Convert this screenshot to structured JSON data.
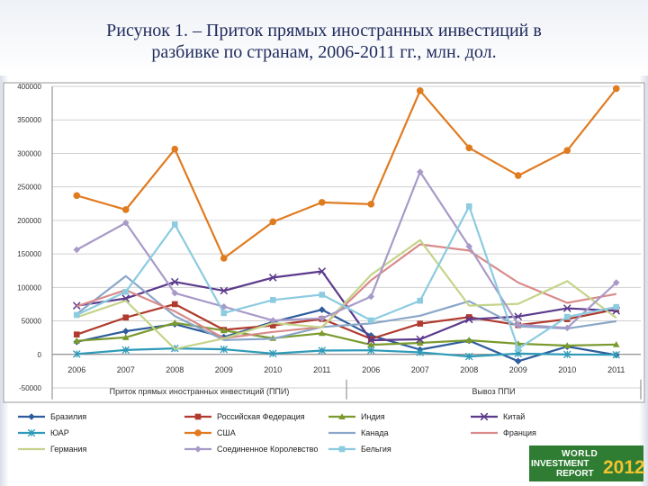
{
  "title": {
    "line1": "Рисунок 1. – Приток прямых иностранных инвестиций в",
    "line2": "разбивке по странам, 2006-2011 гг., млн. дол."
  },
  "logo": {
    "line1": "WORLD",
    "line2": "INVESTMENT",
    "line3": "REPORT",
    "year": "2012"
  },
  "chart_data": {
    "type": "line",
    "title": "",
    "xlabel": "",
    "ylabel": "",
    "y_tick_labels": [
      "-50000",
      "0",
      "50000",
      "100000",
      "150000",
      "200000",
      "250000",
      "300000",
      "350000",
      "400000"
    ],
    "y_ticks": [
      -50000,
      0,
      50000,
      100000,
      150000,
      200000,
      250000,
      300000,
      350000,
      400000
    ],
    "ylim": [
      -50000,
      400000
    ],
    "groups": [
      {
        "label": "Приток прямых иностранных инвестиций (ППИ)",
        "years": [
          "2006",
          "2007",
          "2008",
          "2009",
          "2010",
          "2011"
        ]
      },
      {
        "label": "Вывоз ППИ",
        "years": [
          "2006",
          "2007",
          "2008",
          "2009",
          "2010",
          "2011"
        ]
      }
    ],
    "grid": true,
    "legend_position": "bottom",
    "series": [
      {
        "name": "Бразилия",
        "color": "#2e5c9c",
        "marker": "diamond",
        "values": [
          18800,
          34600,
          45100,
          25900,
          48500,
          66700,
          28200,
          7100,
          20500,
          -10100,
          11600,
          -1000
        ]
      },
      {
        "name": "Российская Федерация",
        "color": "#b03a2e",
        "marker": "square",
        "values": [
          29700,
          55100,
          75000,
          36600,
          43200,
          52900,
          23200,
          45900,
          55600,
          43700,
          52600,
          67300
        ]
      },
      {
        "name": "Индия",
        "color": "#7a9a2e",
        "marker": "triangle",
        "values": [
          20300,
          25400,
          47100,
          35700,
          24200,
          31600,
          14300,
          17200,
          21100,
          16000,
          13200,
          14800
        ]
      },
      {
        "name": "Китай",
        "color": "#5b3a8c",
        "marker": "x",
        "values": [
          72700,
          83500,
          108300,
          95000,
          114700,
          124000,
          21200,
          22500,
          52200,
          56500,
          68800,
          65100
        ]
      },
      {
        "name": "ЮАР",
        "color": "#2e9ab8",
        "marker": "star",
        "values": [
          600,
          6600,
          9000,
          7600,
          1200,
          5800,
          6100,
          3000,
          -3100,
          1200,
          -100,
          -600
        ]
      },
      {
        "name": "США",
        "color": "#e07b20",
        "marker": "circle",
        "values": [
          237100,
          216000,
          306400,
          143600,
          197900,
          226900,
          224200,
          393500,
          308300,
          266900,
          304400,
          396700
        ]
      },
      {
        "name": "Канада",
        "color": "#8aa6c8",
        "marker": "none",
        "values": [
          60300,
          116800,
          57200,
          21400,
          23400,
          40900,
          46200,
          57700,
          79300,
          41700,
          38600,
          49600
        ]
      },
      {
        "name": "Франция",
        "color": "#d98a8a",
        "marker": "none",
        "values": [
          71800,
          96200,
          64200,
          24200,
          33600,
          40900,
          110700,
          164300,
          155000,
          107100,
          76900,
          90100
        ]
      },
      {
        "name": "Германия",
        "color": "#c4d48a",
        "marker": "none",
        "values": [
          55600,
          80200,
          8100,
          23800,
          46900,
          40400,
          118700,
          170600,
          72800,
          75400,
          109300,
          54400
        ]
      },
      {
        "name": "Соединенное Королевство",
        "color": "#a89ac8",
        "marker": "diamond",
        "values": [
          156200,
          196400,
          91500,
          71100,
          50600,
          53900,
          86300,
          272400,
          161100,
          44400,
          39500,
          107100
        ]
      },
      {
        "name": "Бельгия",
        "color": "#8ccbe0",
        "marker": "square",
        "values": [
          58900,
          93400,
          193900,
          61700,
          81200,
          89100,
          50700,
          80100,
          221000,
          8600,
          56000,
          70700
        ]
      }
    ]
  }
}
